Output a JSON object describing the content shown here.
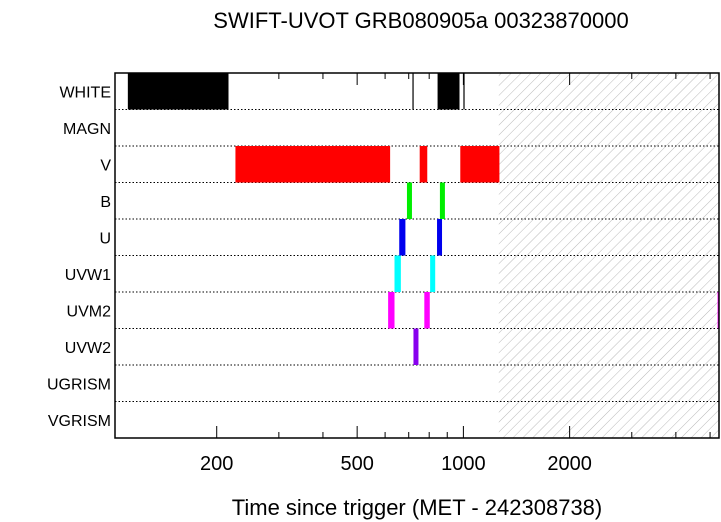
{
  "chart_data": {
    "type": "timeline",
    "title": "SWIFT-UVOT GRB080905a 00323870000",
    "xlabel": "Time since trigger (MET - 242308738)",
    "xscale": "log",
    "xlim": [
      103,
      5300
    ],
    "xticks": [
      {
        "value": 200,
        "label": "200"
      },
      {
        "value": 500,
        "label": "500"
      },
      {
        "value": 1000,
        "label": "1000"
      },
      {
        "value": 2000,
        "label": "2000"
      }
    ],
    "filters": [
      "WHITE",
      "MAGN",
      "V",
      "B",
      "U",
      "UVW1",
      "UVM2",
      "UVW2",
      "UGRISM",
      "VGRISM"
    ],
    "colors": {
      "WHITE": "#000000",
      "V": "#ff0000",
      "B": "#00ee00",
      "U": "#0000ee",
      "UVW1": "#00ffff",
      "UVM2": "#ff00ff",
      "UVW2": "#8800ee"
    },
    "hatched_region": {
      "start": 1260,
      "end": 5300
    },
    "exposures": [
      {
        "filter": "WHITE",
        "start": 112,
        "end": 216
      },
      {
        "filter": "WHITE",
        "start": 718,
        "end": 722,
        "thin": true
      },
      {
        "filter": "WHITE",
        "start": 845,
        "end": 975
      },
      {
        "filter": "WHITE",
        "start": 1002,
        "end": 1006,
        "thin": true
      },
      {
        "filter": "V",
        "start": 226,
        "end": 620
      },
      {
        "filter": "V",
        "start": 752,
        "end": 790
      },
      {
        "filter": "V",
        "start": 980,
        "end": 1265
      },
      {
        "filter": "B",
        "start": 692,
        "end": 705
      },
      {
        "filter": "B",
        "start": 858,
        "end": 870
      },
      {
        "filter": "U",
        "start": 658,
        "end": 685
      },
      {
        "filter": "U",
        "start": 842,
        "end": 868
      },
      {
        "filter": "UVW1",
        "start": 638,
        "end": 665
      },
      {
        "filter": "UVW1",
        "start": 805,
        "end": 832
      },
      {
        "filter": "UVM2",
        "start": 612,
        "end": 638
      },
      {
        "filter": "UVM2",
        "start": 775,
        "end": 803
      },
      {
        "filter": "UVM2",
        "start": 5250,
        "end": 5300
      },
      {
        "filter": "UVW2",
        "start": 722,
        "end": 745
      }
    ]
  }
}
